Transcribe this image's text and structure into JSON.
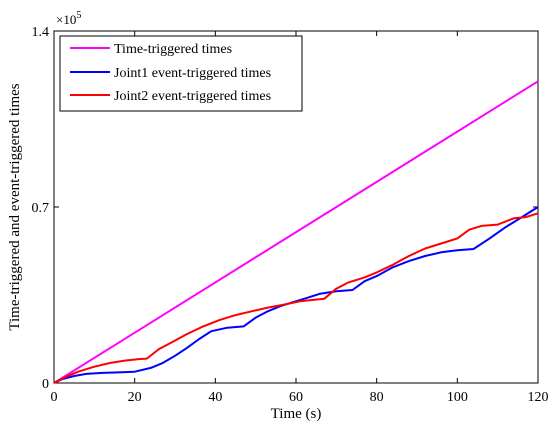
{
  "chart_data": {
    "type": "line",
    "xlabel": "Time (s)",
    "ylabel": "Time-triggered and event-triggered times",
    "y_exponent_label": "×10",
    "y_exponent_power": "5",
    "xlim": [
      0,
      120
    ],
    "ylim": [
      0,
      140000
    ],
    "xticks": [
      0,
      20,
      40,
      60,
      80,
      100,
      120
    ],
    "xtick_labels": [
      "0",
      "20",
      "40",
      "60",
      "80",
      "100",
      "120"
    ],
    "yticks": [
      0,
      70000,
      140000
    ],
    "ytick_labels": [
      "0",
      "0.7",
      "1.4"
    ],
    "grid": false,
    "legend_position": "top-left",
    "series": [
      {
        "name": "Time-triggered times",
        "color": "#ff00ff",
        "x": [
          0,
          120
        ],
        "y": [
          0,
          120000
        ]
      },
      {
        "name": "Joint1 event-triggered times",
        "color": "#0000ff",
        "x": [
          0,
          2,
          5,
          8,
          12,
          16,
          20,
          24,
          27,
          30,
          33,
          36,
          39,
          43,
          47,
          50,
          53,
          56,
          59,
          62,
          66,
          70,
          74,
          77,
          80,
          84,
          88,
          92,
          96,
          100,
          104,
          108,
          112,
          116,
          120
        ],
        "y": [
          0,
          1500,
          2800,
          3600,
          4000,
          4200,
          4500,
          6000,
          8000,
          10800,
          14000,
          17500,
          20600,
          22000,
          22500,
          26000,
          28500,
          30500,
          32000,
          33500,
          35500,
          36500,
          37000,
          40500,
          42500,
          46000,
          48500,
          50500,
          52000,
          52800,
          53300,
          57500,
          62000,
          66000,
          70000
        ]
      },
      {
        "name": "Joint2 event-triggered times",
        "color": "#ff0000",
        "x": [
          0,
          3,
          6,
          10,
          14,
          18,
          21,
          23,
          26,
          29,
          33,
          37,
          41,
          45,
          49,
          53,
          57,
          61,
          64,
          67,
          70,
          73,
          77,
          80,
          84,
          88,
          92,
          96,
          100,
          103,
          106,
          110,
          114,
          117,
          120
        ],
        "y": [
          0,
          2500,
          4500,
          6500,
          8000,
          9000,
          9500,
          9700,
          13500,
          16000,
          19500,
          22500,
          25000,
          27000,
          28500,
          30000,
          31200,
          32500,
          33000,
          33500,
          37500,
          40000,
          42000,
          44000,
          47000,
          50500,
          53500,
          55500,
          57500,
          61000,
          62500,
          63000,
          65500,
          66000,
          67500
        ]
      }
    ]
  }
}
